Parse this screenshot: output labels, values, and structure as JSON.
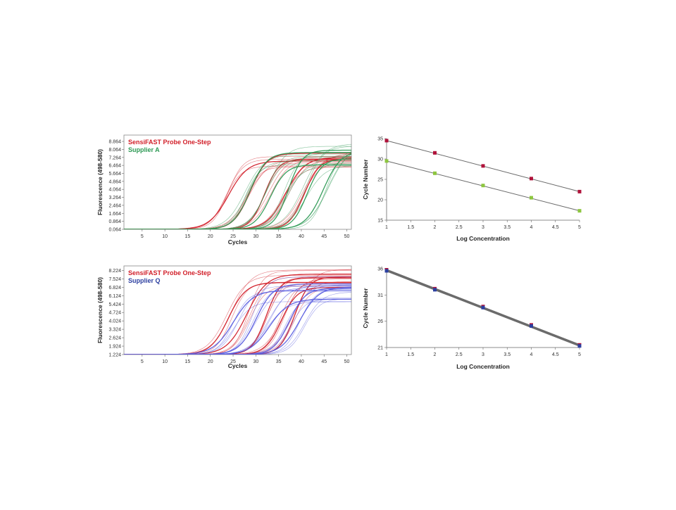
{
  "chart_data": [
    {
      "type": "line",
      "panel": "amplification-top",
      "xlabel": "Cycles",
      "ylabel": "Fluorescence (498-580)",
      "xlim": [
        1,
        51
      ],
      "ylim": [
        0.064,
        9.5
      ],
      "x_ticks": [
        5,
        10,
        15,
        20,
        25,
        30,
        35,
        40,
        45,
        50
      ],
      "y_tick_labels": [
        "0.064",
        "0.864",
        "1.664",
        "2.464",
        "3.264",
        "4.064",
        "4.864",
        "5.664",
        "6.464",
        "7.264",
        "8.064",
        "8.864"
      ],
      "legend": [
        {
          "label": "SensiFAST Probe One-Step",
          "color": "#d2202a"
        },
        {
          "label": "Supplier A",
          "color": "#2e9a55"
        }
      ],
      "series": [
        {
          "group": "SensiFAST Probe One-Step",
          "color": "#d2202a",
          "midpoints": [
            24.0,
            28.5,
            32.5,
            36.5,
            40.5
          ],
          "plateau": 7.8
        },
        {
          "group": "Supplier A",
          "color": "#2e9a55",
          "midpoints": [
            28.0,
            32.5,
            37.0,
            41.0,
            45.5
          ],
          "plateau": 8.8
        }
      ]
    },
    {
      "type": "scatter",
      "panel": "standard-curve-top",
      "xlabel": "Log Concentration",
      "ylabel": "Cycle Number",
      "xlim": [
        1,
        5
      ],
      "ylim": [
        15,
        35
      ],
      "x_ticks": [
        1,
        1.5,
        2,
        2.5,
        3,
        3.5,
        4,
        4.5,
        5
      ],
      "y_ticks": [
        15,
        20,
        25,
        30,
        35
      ],
      "series": [
        {
          "group": "SensiFAST Probe One-Step",
          "color": "#b0123a",
          "x": [
            1,
            2,
            3,
            4,
            5
          ],
          "y": [
            34.5,
            31.5,
            28.3,
            25.2,
            22.0
          ]
        },
        {
          "group": "Supplier A",
          "color": "#8dc63f",
          "x": [
            1,
            2,
            3,
            4,
            5
          ],
          "y": [
            29.5,
            26.5,
            23.5,
            20.5,
            17.3
          ]
        }
      ]
    },
    {
      "type": "line",
      "panel": "amplification-bottom",
      "xlabel": "Cycles",
      "ylabel": "Fluorescence (498-580)",
      "xlim": [
        1,
        51
      ],
      "ylim": [
        1.224,
        8.6
      ],
      "x_ticks": [
        5,
        10,
        15,
        20,
        25,
        30,
        35,
        40,
        45,
        50
      ],
      "y_tick_labels": [
        "1.224",
        "1.924",
        "2.624",
        "3.324",
        "4.024",
        "4.724",
        "5.424",
        "6.124",
        "6.824",
        "7.524",
        "8.224"
      ],
      "legend": [
        {
          "label": "SensiFAST Probe One-Step",
          "color": "#d2202a"
        },
        {
          "label": "Supplier Q",
          "color": "#2c3fa0"
        }
      ],
      "series": [
        {
          "group": "SensiFAST Probe One-Step",
          "color": "#d2202a",
          "midpoints": [
            24.0,
            28.5,
            32.0,
            35.5,
            38.5
          ],
          "plateau": 8.4
        },
        {
          "group": "Supplier Q",
          "color": "#5a5ee0",
          "midpoints": [
            25.5,
            29.5,
            33.0,
            37.0,
            40.0
          ],
          "plateau": 7.8
        }
      ]
    },
    {
      "type": "scatter",
      "panel": "standard-curve-bottom",
      "xlabel": "Log Concentration",
      "ylabel": "Cycle Number",
      "xlim": [
        1,
        5
      ],
      "ylim": [
        21,
        36
      ],
      "x_ticks": [
        1,
        1.5,
        2,
        2.5,
        3,
        3.5,
        4,
        4.5,
        5
      ],
      "y_ticks": [
        21,
        26,
        31,
        36
      ],
      "series": [
        {
          "group": "SensiFAST Probe One-Step",
          "color": "#b0123a",
          "x": [
            1,
            2,
            3,
            4,
            5
          ],
          "y": [
            35.8,
            32.2,
            28.8,
            25.3,
            21.5
          ]
        },
        {
          "group": "Supplier Q",
          "color": "#2c3fa0",
          "x": [
            1,
            2,
            3,
            4,
            5
          ],
          "y": [
            35.6,
            32.0,
            28.6,
            25.1,
            21.3
          ]
        }
      ]
    }
  ]
}
